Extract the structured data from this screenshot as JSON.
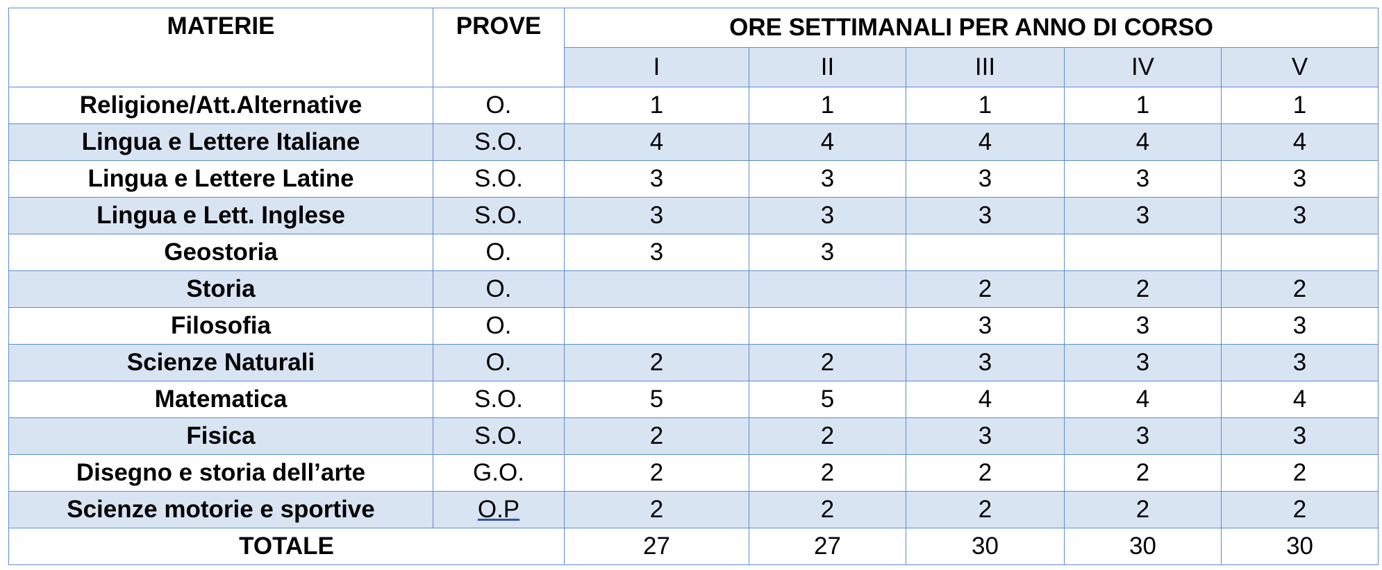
{
  "header": {
    "materie": "MATERIE",
    "prove": "PROVE",
    "ore": "ORE SETTIMANALI PER ANNO DI CORSO",
    "years": [
      "I",
      "II",
      "III",
      "IV",
      "V"
    ]
  },
  "rows": [
    {
      "subject": "Religione/Att.Alternative",
      "prove": "O.",
      "hours": [
        "1",
        "1",
        "1",
        "1",
        "1"
      ]
    },
    {
      "subject": "Lingua e Lettere Italiane",
      "prove": "S.O.",
      "hours": [
        "4",
        "4",
        "4",
        "4",
        "4"
      ]
    },
    {
      "subject": "Lingua e Lettere Latine",
      "prove": "S.O.",
      "hours": [
        "3",
        "3",
        "3",
        "3",
        "3"
      ]
    },
    {
      "subject": "Lingua e Lett. Inglese",
      "prove": "S.O.",
      "hours": [
        "3",
        "3",
        "3",
        "3",
        "3"
      ]
    },
    {
      "subject": "Geostoria",
      "prove": "O.",
      "hours": [
        "3",
        "3",
        "",
        "",
        ""
      ]
    },
    {
      "subject": "Storia",
      "prove": "O.",
      "hours": [
        "",
        "",
        "2",
        "2",
        "2"
      ]
    },
    {
      "subject": "Filosofia",
      "prove": "O.",
      "hours": [
        "",
        "",
        "3",
        "3",
        "3"
      ]
    },
    {
      "subject": "Scienze Naturali",
      "prove": "O.",
      "hours": [
        "2",
        "2",
        "3",
        "3",
        "3"
      ]
    },
    {
      "subject": "Matematica",
      "prove": "S.O.",
      "hours": [
        "5",
        "5",
        "4",
        "4",
        "4"
      ]
    },
    {
      "subject": "Fisica",
      "prove": "S.O.",
      "hours": [
        "2",
        "2",
        "3",
        "3",
        "3"
      ]
    },
    {
      "subject": "Disegno e storia dell’arte",
      "prove": "G.O.",
      "hours": [
        "2",
        "2",
        "2",
        "2",
        "2"
      ]
    },
    {
      "subject": "Scienze motorie e sportive",
      "prove": "O.P",
      "hours": [
        "2",
        "2",
        "2",
        "2",
        "2"
      ]
    }
  ],
  "totals": {
    "label": "TOTALE",
    "hours": [
      "27",
      "27",
      "30",
      "30",
      "30"
    ]
  }
}
